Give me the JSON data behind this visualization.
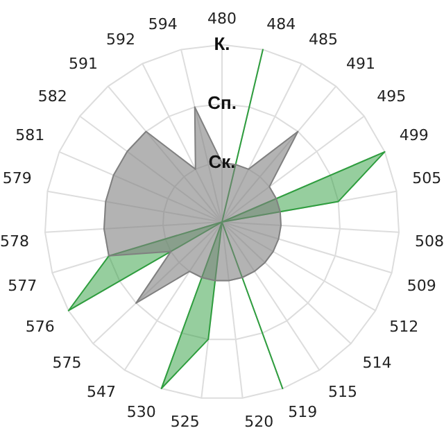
{
  "chart_data": {
    "type": "radar",
    "categories": [
      "480",
      "484",
      "485",
      "491",
      "495",
      "499",
      "505",
      "508",
      "509",
      "512",
      "514",
      "515",
      "519",
      "520",
      "525",
      "530",
      "547",
      "575",
      "576",
      "577",
      "578",
      "579",
      "581",
      "582",
      "591",
      "592",
      "594"
    ],
    "series": [
      {
        "color": "#808080",
        "values": [
          1,
          1,
          1,
          2,
          1,
          1,
          1,
          1,
          1,
          1,
          1,
          1,
          1,
          1,
          1,
          1,
          1,
          2,
          1,
          2,
          2,
          2,
          2,
          2,
          2,
          1,
          2
        ]
      },
      {
        "color": "#2e9e3e",
        "values": [
          0,
          3,
          0,
          0,
          0,
          3,
          2,
          0,
          0,
          0,
          0,
          0,
          3,
          0,
          2,
          3,
          0,
          0,
          3,
          2,
          0,
          0,
          0,
          0,
          0,
          0,
          0
        ]
      }
    ],
    "ylim": [
      0,
      3
    ],
    "yticks": [
      {
        "value": 1,
        "label": "Ск."
      },
      {
        "value": 2,
        "label": "Сп."
      },
      {
        "value": 3,
        "label": "К."
      }
    ],
    "grid": true,
    "legend": false,
    "marker": "none"
  }
}
